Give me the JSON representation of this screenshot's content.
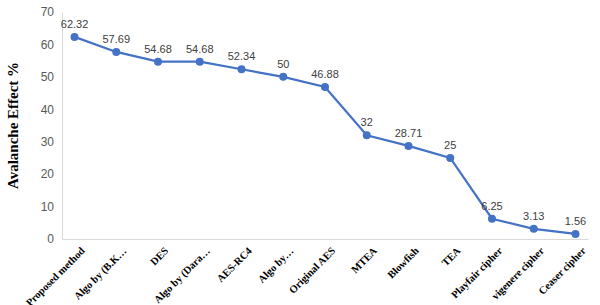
{
  "chart_data": {
    "type": "line",
    "y_label": "Avalanche Effect %",
    "categories": [
      "Proposed method",
      "Algo by (B.K…",
      "DES",
      "Algo by (Dara…",
      "AES-RC4",
      "Algo by…",
      "Original AES",
      "MTEA",
      "Blowfish",
      "TEA",
      "Playfair cipher",
      "vigenere cipher",
      "Ceaser cipher"
    ],
    "values": [
      62.32,
      57.69,
      54.68,
      54.68,
      52.34,
      50,
      46.88,
      32,
      28.71,
      25,
      6.25,
      3.13,
      1.56
    ],
    "color": "#4472c4",
    "marker": "circle",
    "ylim": [
      0,
      70
    ],
    "yticks": [
      0,
      10,
      20,
      30,
      40,
      50,
      60,
      70
    ],
    "grid": false,
    "data_labels": true
  }
}
